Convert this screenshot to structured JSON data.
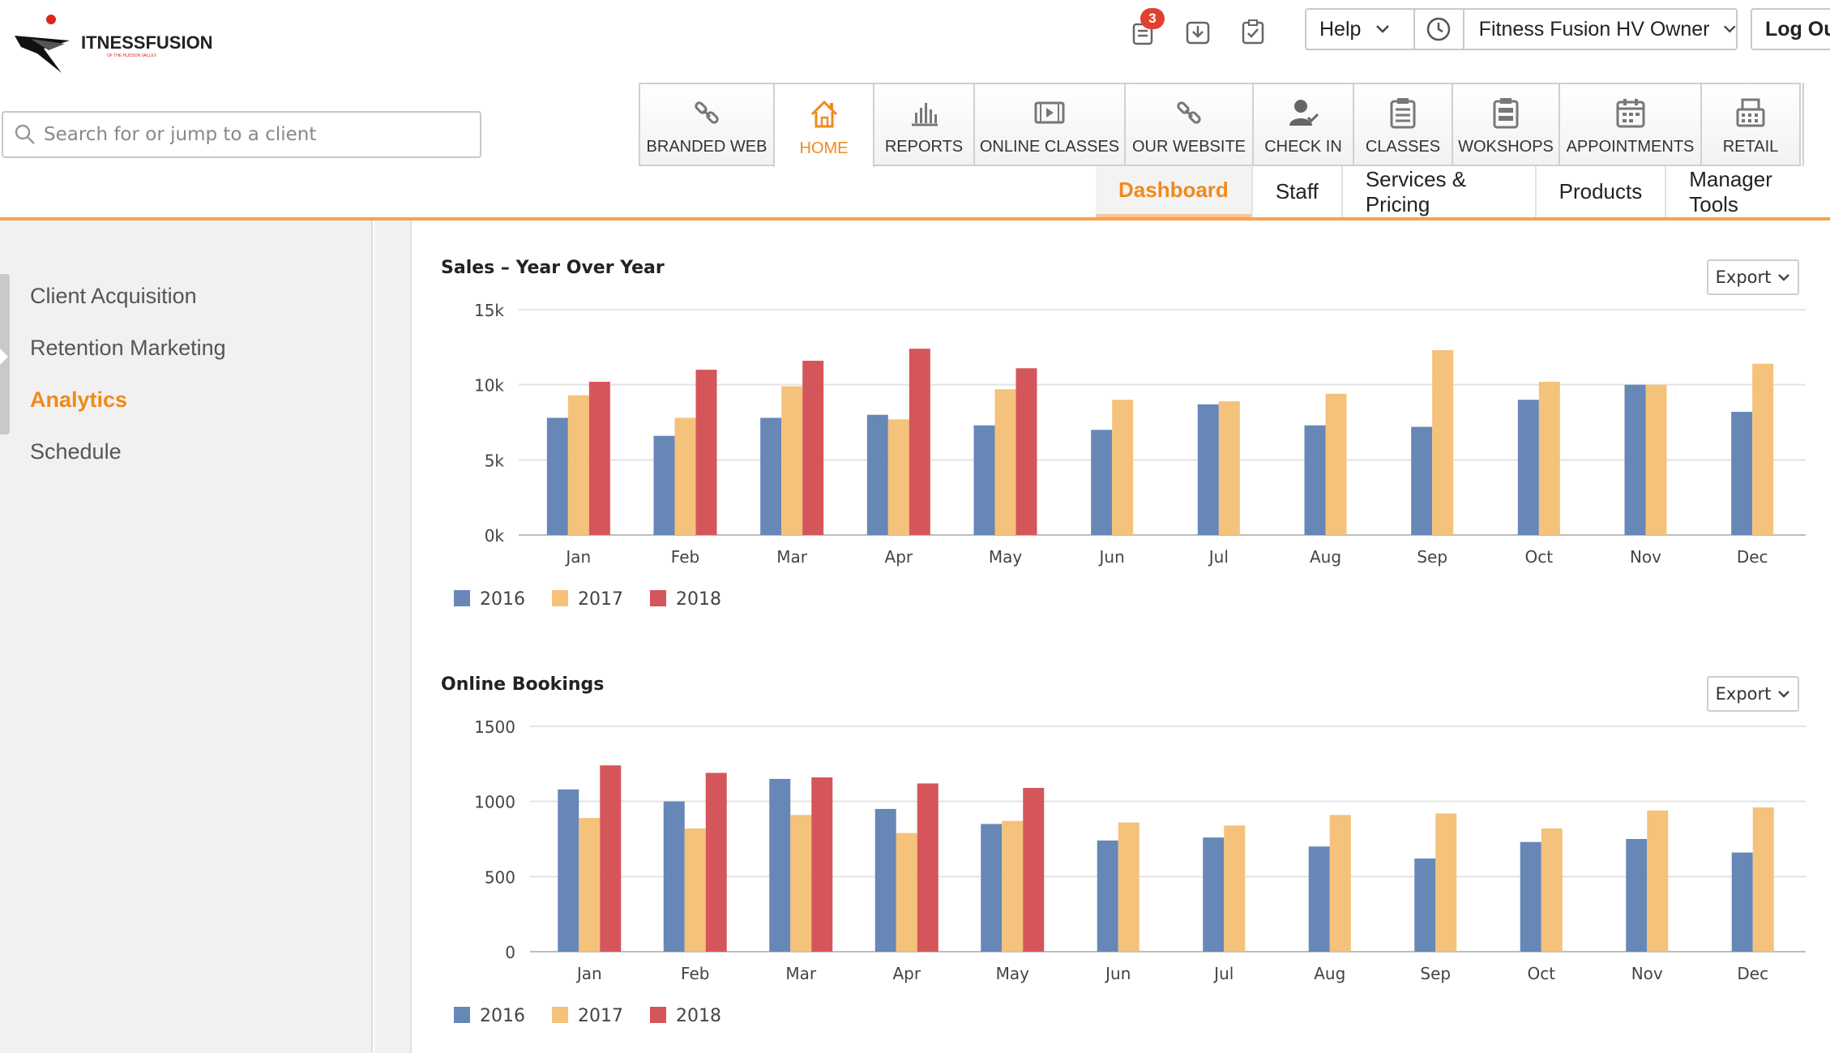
{
  "brand": {
    "logo_text": "ITNESSFUSION",
    "tagline": "OF THE HUDSON VALLEY",
    "accent": "#f08a1c"
  },
  "search": {
    "placeholder": "Search for or jump to a client"
  },
  "top_icons": [
    {
      "name": "notifications-icon",
      "badge": "3"
    },
    {
      "name": "download-icon"
    },
    {
      "name": "tasks-icon"
    }
  ],
  "header": {
    "help_label": "Help",
    "owner_label": "Fitness Fusion HV Owner",
    "logout_label": "Log Ou"
  },
  "nav": [
    {
      "label": "BRANDED WEB",
      "icon": "link-icon",
      "active": false
    },
    {
      "label": "HOME",
      "icon": "home-icon",
      "active": true
    },
    {
      "label": "REPORTS",
      "icon": "bar-chart-icon",
      "active": false
    },
    {
      "label": "ONLINE CLASSES",
      "icon": "video-icon",
      "active": false
    },
    {
      "label": "OUR WEBSITE",
      "icon": "link-icon",
      "active": false
    },
    {
      "label": "CHECK IN",
      "icon": "user-check-icon",
      "active": false
    },
    {
      "label": "CLASSES",
      "icon": "clipboard-icon",
      "active": false
    },
    {
      "label": "WOKSHOPS",
      "icon": "clipboard-icon",
      "active": false
    },
    {
      "label": "APPOINTMENTS",
      "icon": "calendar-icon",
      "active": false
    },
    {
      "label": "RETAIL",
      "icon": "register-icon",
      "active": false
    }
  ],
  "subnav": [
    {
      "label": "Dashboard",
      "active": true
    },
    {
      "label": "Staff",
      "active": false
    },
    {
      "label": "Services & Pricing",
      "active": false
    },
    {
      "label": "Products",
      "active": false
    },
    {
      "label": "Manager Tools",
      "active": false
    }
  ],
  "sidebar": {
    "items": [
      {
        "label": "Client Acquisition",
        "active": false
      },
      {
        "label": "Retention Marketing",
        "active": false
      },
      {
        "label": "Analytics",
        "active": true
      },
      {
        "label": "Schedule",
        "active": false
      }
    ]
  },
  "export_label": "Export",
  "chart_data": [
    {
      "type": "bar",
      "title": "Sales – Year Over Year",
      "categories": [
        "Jan",
        "Feb",
        "Mar",
        "Apr",
        "May",
        "Jun",
        "Jul",
        "Aug",
        "Sep",
        "Oct",
        "Nov",
        "Dec"
      ],
      "series": [
        {
          "name": "2016",
          "color": "#6787b7",
          "values": [
            7800,
            6600,
            7800,
            8000,
            7300,
            7000,
            8700,
            7300,
            7200,
            9000,
            10000,
            8200
          ]
        },
        {
          "name": "2017",
          "color": "#f4c27a",
          "values": [
            9300,
            7800,
            9900,
            7700,
            9700,
            9000,
            8900,
            9400,
            12300,
            10200,
            10000,
            11400
          ]
        },
        {
          "name": "2018",
          "color": "#d5565a",
          "values": [
            10200,
            11000,
            11600,
            12400,
            11100,
            null,
            null,
            null,
            null,
            null,
            null,
            null
          ]
        }
      ],
      "y_ticks": [
        "0k",
        "5k",
        "10k",
        "15k"
      ],
      "ylim": [
        0,
        15000
      ],
      "grid": true,
      "legend": "bottom-left"
    },
    {
      "type": "bar",
      "title": "Online Bookings",
      "categories": [
        "Jan",
        "Feb",
        "Mar",
        "Apr",
        "May",
        "Jun",
        "Jul",
        "Aug",
        "Sep",
        "Oct",
        "Nov",
        "Dec"
      ],
      "series": [
        {
          "name": "2016",
          "color": "#6787b7",
          "values": [
            1080,
            1000,
            1150,
            950,
            850,
            740,
            760,
            700,
            620,
            730,
            750,
            660
          ]
        },
        {
          "name": "2017",
          "color": "#f4c27a",
          "values": [
            890,
            820,
            910,
            790,
            870,
            860,
            840,
            910,
            920,
            820,
            940,
            960
          ]
        },
        {
          "name": "2018",
          "color": "#d5565a",
          "values": [
            1240,
            1190,
            1160,
            1120,
            1090,
            null,
            null,
            null,
            null,
            null,
            null,
            null
          ]
        }
      ],
      "y_ticks": [
        "0",
        "500",
        "1000",
        "1500"
      ],
      "ylim": [
        0,
        1500
      ],
      "grid": true,
      "legend": "bottom-left"
    }
  ]
}
